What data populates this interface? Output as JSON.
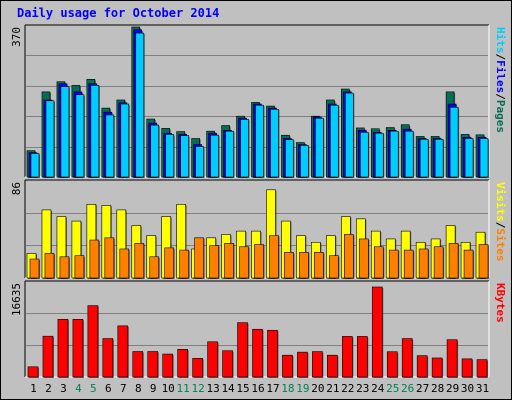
{
  "title": "Daily usage for October 2014",
  "colors": {
    "pages": "#066d55",
    "files": "#0000ff",
    "hits": "#00ccff",
    "sites": "#ff8000",
    "visits": "#ffff00",
    "kbytes": "#ff0000",
    "weekday_label": "#000000",
    "weekend_label": "#00805a"
  },
  "chart_data": [
    {
      "type": "bar",
      "name": "hits-panel",
      "categories": [
        "1",
        "2",
        "3",
        "4",
        "5",
        "6",
        "7",
        "8",
        "9",
        "10",
        "11",
        "12",
        "13",
        "14",
        "15",
        "16",
        "17",
        "18",
        "19",
        "20",
        "21",
        "22",
        "23",
        "24",
        "25",
        "26",
        "27",
        "28",
        "29",
        "30",
        "31"
      ],
      "ylim": [
        0,
        370
      ],
      "ytick_label": "370",
      "legend": [
        "Pages",
        "Files",
        "Hits"
      ],
      "legend_position": "right",
      "series": [
        {
          "name": "Pages",
          "values": [
            65,
            210,
            235,
            226,
            241,
            170,
            190,
            370,
            143,
            120,
            112,
            95,
            113,
            127,
            150,
            184,
            175,
            103,
            85,
            150,
            190,
            217,
            121,
            119,
            122,
            129,
            100,
            100,
            210,
            105,
            104
          ]
        },
        {
          "name": "Files",
          "values": [
            60,
            190,
            230,
            210,
            230,
            160,
            183,
            363,
            133,
            108,
            105,
            80,
            108,
            115,
            145,
            180,
            170,
            95,
            80,
            148,
            180,
            210,
            115,
            110,
            115,
            118,
            95,
            95,
            180,
            98,
            98
          ]
        },
        {
          "name": "Hits",
          "values": [
            58,
            188,
            223,
            203,
            226,
            153,
            180,
            355,
            128,
            105,
            102,
            75,
            103,
            113,
            142,
            177,
            167,
            92,
            78,
            145,
            177,
            207,
            110,
            108,
            113,
            113,
            93,
            93,
            172,
            95,
            95
          ]
        }
      ]
    },
    {
      "type": "bar",
      "name": "visits-panel",
      "categories": [
        "1",
        "2",
        "3",
        "4",
        "5",
        "6",
        "7",
        "8",
        "9",
        "10",
        "11",
        "12",
        "13",
        "14",
        "15",
        "16",
        "17",
        "18",
        "19",
        "20",
        "21",
        "22",
        "23",
        "24",
        "25",
        "26",
        "27",
        "28",
        "29",
        "30",
        "31"
      ],
      "ylim": [
        0,
        86
      ],
      "ytick_label": "86",
      "legend": [
        "Sites",
        "Visits"
      ],
      "legend_position": "right",
      "series": [
        {
          "name": "Sites",
          "values": [
            17,
            22,
            19,
            20,
            34,
            36,
            26,
            31,
            19,
            27,
            25,
            36,
            29,
            31,
            28,
            30,
            38,
            23,
            23,
            23,
            20,
            39,
            35,
            28,
            25,
            25,
            26,
            28,
            31,
            25,
            30
          ]
        },
        {
          "name": "Visits",
          "values": [
            22,
            61,
            55,
            51,
            66,
            65,
            61,
            47,
            38,
            55,
            66,
            26,
            36,
            39,
            42,
            42,
            79,
            51,
            38,
            32,
            38,
            55,
            53,
            42,
            35,
            42,
            32,
            35,
            47,
            32,
            41
          ]
        }
      ]
    },
    {
      "type": "bar",
      "name": "kbytes-panel",
      "categories": [
        "1",
        "2",
        "3",
        "4",
        "5",
        "6",
        "7",
        "8",
        "9",
        "10",
        "11",
        "12",
        "13",
        "14",
        "15",
        "16",
        "17",
        "18",
        "19",
        "20",
        "21",
        "22",
        "23",
        "24",
        "25",
        "26",
        "27",
        "28",
        "29",
        "30",
        "31"
      ],
      "ylim": [
        0,
        16635
      ],
      "ytick_label": "16635",
      "legend": [
        "KBytes"
      ],
      "legend_position": "right",
      "series": [
        {
          "name": "KBytes",
          "values": [
            1805,
            7220,
            10210,
            10210,
            12630,
            6800,
            9050,
            4510,
            4510,
            4060,
            4900,
            3300,
            6230,
            4650,
            9620,
            8450,
            8270,
            3860,
            4400,
            4500,
            3860,
            7180,
            7180,
            15930,
            4470,
            6800,
            3780,
            3370,
            6600,
            3210,
            3080
          ]
        }
      ]
    }
  ],
  "weekend_days": [
    4,
    5,
    11,
    12,
    18,
    19,
    25,
    26
  ]
}
